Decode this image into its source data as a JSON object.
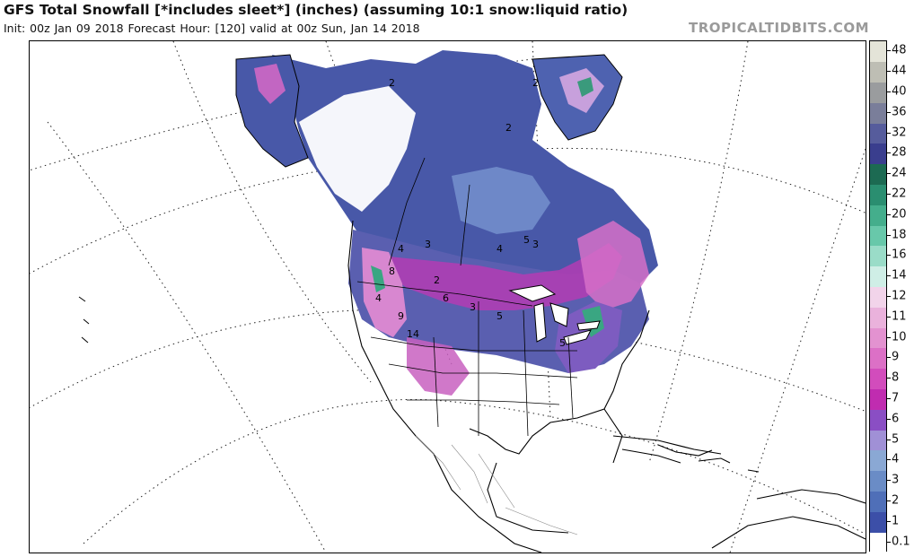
{
  "header": {
    "title": "GFS Total Snowfall [*includes sleet*] (inches) (assuming 10:1 snow:liquid ratio)",
    "subtitle": "Init: 00z Jan 09 2018   Forecast Hour: [120]   valid at 00z Sun, Jan 14 2018",
    "credit": "TROPICALTIDBITS.COM"
  },
  "colorbar": {
    "levels": [
      {
        "label": "0.1",
        "color": "#ffffff"
      },
      {
        "label": "1",
        "color": "#3c4fa8"
      },
      {
        "label": "2",
        "color": "#4f6fb8"
      },
      {
        "label": "3",
        "color": "#6a8cc6"
      },
      {
        "label": "4",
        "color": "#8aa8d4"
      },
      {
        "label": "5",
        "color": "#a090d6"
      },
      {
        "label": "6",
        "color": "#8a4ec4"
      },
      {
        "label": "7",
        "color": "#c02cb0"
      },
      {
        "label": "8",
        "color": "#d24cbc"
      },
      {
        "label": "9",
        "color": "#dc70c6"
      },
      {
        "label": "10",
        "color": "#e392d0"
      },
      {
        "label": "11",
        "color": "#eab2dc"
      },
      {
        "label": "12",
        "color": "#f2d4ea"
      },
      {
        "label": "14",
        "color": "#cfeee6"
      },
      {
        "label": "16",
        "color": "#9adcc8"
      },
      {
        "label": "18",
        "color": "#68c8aa"
      },
      {
        "label": "20",
        "color": "#44ae8c"
      },
      {
        "label": "22",
        "color": "#2a8e70"
      },
      {
        "label": "24",
        "color": "#1c6a52"
      },
      {
        "label": "28",
        "color": "#3a3e8e"
      },
      {
        "label": "32",
        "color": "#565c9c"
      },
      {
        "label": "36",
        "color": "#7a7e9a"
      },
      {
        "label": "40",
        "color": "#9a9c9e"
      },
      {
        "label": "44",
        "color": "#bebeb4"
      },
      {
        "label": "48",
        "color": "#e4e4d8"
      }
    ]
  },
  "map": {
    "region": "North America",
    "contour_labels": [
      {
        "text": "2"
      },
      {
        "text": "2"
      },
      {
        "text": "2"
      },
      {
        "text": "4"
      },
      {
        "text": "3"
      },
      {
        "text": "4"
      },
      {
        "text": "5"
      },
      {
        "text": "3"
      },
      {
        "text": "8"
      },
      {
        "text": "4"
      },
      {
        "text": "6"
      },
      {
        "text": "2"
      },
      {
        "text": "3"
      },
      {
        "text": "5"
      },
      {
        "text": "9"
      },
      {
        "text": "14"
      },
      {
        "text": "5"
      }
    ]
  }
}
